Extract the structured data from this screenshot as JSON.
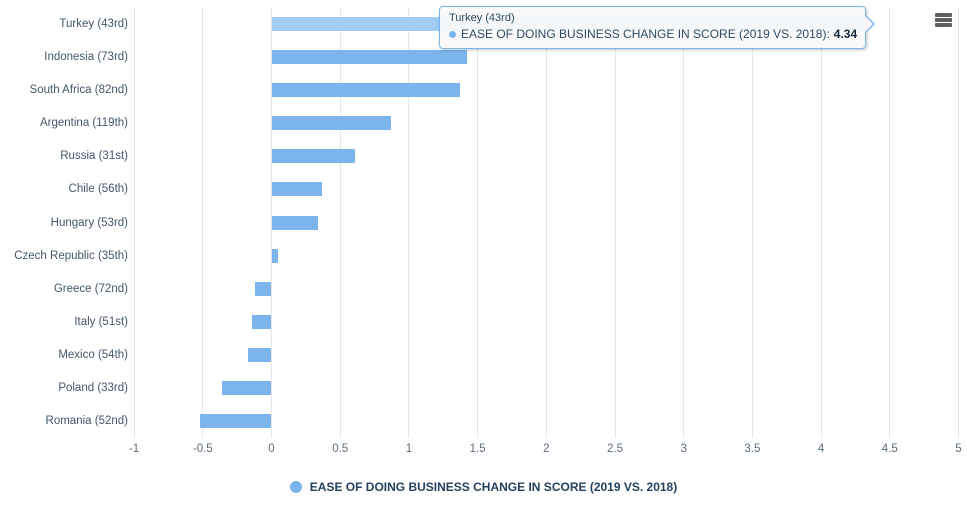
{
  "chart_data": {
    "type": "bar",
    "orientation": "horizontal",
    "title": "",
    "categories": [
      "Turkey (43rd)",
      "Indonesia (73rd)",
      "South Africa (82nd)",
      "Argentina (119th)",
      "Russia (31st)",
      "Chile (56th)",
      "Hungary (53rd)",
      "Czech Republic (35th)",
      "Greece (72nd)",
      "Italy (51st)",
      "Mexico (54th)",
      "Poland (33rd)",
      "Romania (52nd)"
    ],
    "series": [
      {
        "name": "EASE OF DOING BUSINESS CHANGE IN SCORE (2019 VS. 2018)",
        "values": [
          4.34,
          1.42,
          1.37,
          0.87,
          0.61,
          0.37,
          0.34,
          0.05,
          -0.12,
          -0.14,
          -0.17,
          -0.36,
          -0.52
        ]
      }
    ],
    "xlim": [
      -1,
      5
    ],
    "x_axis": {
      "tick_values": [
        -1,
        -0.5,
        0,
        0.5,
        1,
        1.5,
        2,
        2.5,
        3,
        3.5,
        4,
        4.5,
        5
      ],
      "tick_labels": [
        "-1",
        "-0.5",
        "0",
        "0.5",
        "1",
        "1.5",
        "2",
        "2.5",
        "3",
        "3.5",
        "4",
        "4.5",
        "5"
      ]
    },
    "grid": true,
    "legend_position": "bottom-center",
    "hovered_index": 0
  },
  "tooltip": {
    "title": "Turkey (43rd)",
    "series_label": "EASE OF DOING BUSINESS CHANGE IN SCORE (2019 VS. 2018):",
    "value": "4.34"
  },
  "legend": {
    "label": "EASE OF DOING BUSINESS CHANGE IN SCORE (2019 VS. 2018)"
  },
  "icons": {
    "context_menu": "hamburger-icon",
    "series_marker": "circle-marker"
  },
  "colors": {
    "bar": "#7cb5ec",
    "bar_hover": "#a1ccf3",
    "grid": "#e6e6e6",
    "axis_label": "#5b6b7c",
    "category_label": "#44566b",
    "legend_text": "#24425f",
    "tooltip_border": "#7cb5ec",
    "tooltip_bg": "#f9f9f9",
    "tooltip_text": "#2e4a66",
    "tooltip_value": "#16283c",
    "menu_icon": "#5f5f5f"
  }
}
